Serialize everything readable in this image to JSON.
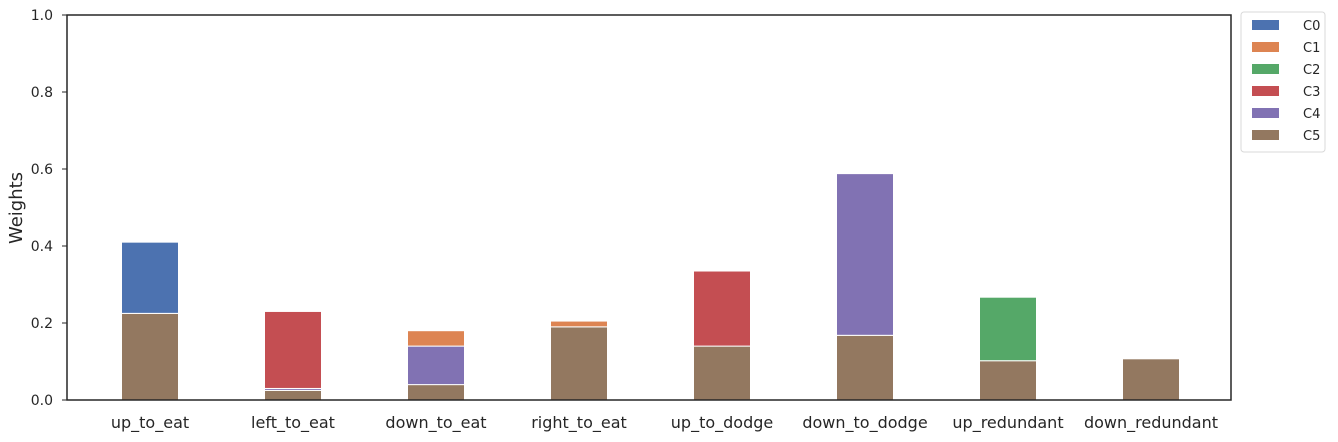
{
  "chart_data": {
    "type": "bar",
    "stacked": true,
    "ylabel": "Weights",
    "xlabel": "",
    "title": "",
    "ylim": [
      0,
      1.0
    ],
    "yticks": [
      "0.0",
      "0.2",
      "0.4",
      "0.6",
      "0.8",
      "1.0"
    ],
    "ytick_values": [
      0,
      0.2,
      0.4,
      0.6,
      0.8,
      1.0
    ],
    "grid": false,
    "legend_position": "outside-top-right",
    "categories": [
      "up_to_eat",
      "left_to_eat",
      "down_to_eat",
      "right_to_eat",
      "up_to_dodge",
      "down_to_dodge",
      "up_redundant",
      "down_redundant"
    ],
    "stack_order": [
      "C5",
      "C4",
      "C3",
      "C2",
      "C1",
      "C0"
    ],
    "series": [
      {
        "name": "C0",
        "color": "#4c72b0",
        "values": [
          0.185,
          0,
          0,
          0,
          0,
          0,
          0,
          0
        ]
      },
      {
        "name": "C1",
        "color": "#dd8452",
        "values": [
          0,
          0,
          0.04,
          0.015,
          0,
          0,
          0,
          0
        ]
      },
      {
        "name": "C2",
        "color": "#55a868",
        "values": [
          0,
          0,
          0,
          0,
          0,
          0,
          0.165,
          0
        ]
      },
      {
        "name": "C3",
        "color": "#c44e52",
        "values": [
          0,
          0.2,
          0,
          0,
          0.195,
          0,
          0,
          0
        ]
      },
      {
        "name": "C4",
        "color": "#8172b3",
        "values": [
          0,
          0.005,
          0.1,
          0,
          0,
          0.42,
          0,
          0
        ]
      },
      {
        "name": "C5",
        "color": "#937860",
        "values": [
          0.225,
          0.025,
          0.04,
          0.19,
          0.14,
          0.168,
          0.102,
          0.107
        ]
      }
    ]
  }
}
